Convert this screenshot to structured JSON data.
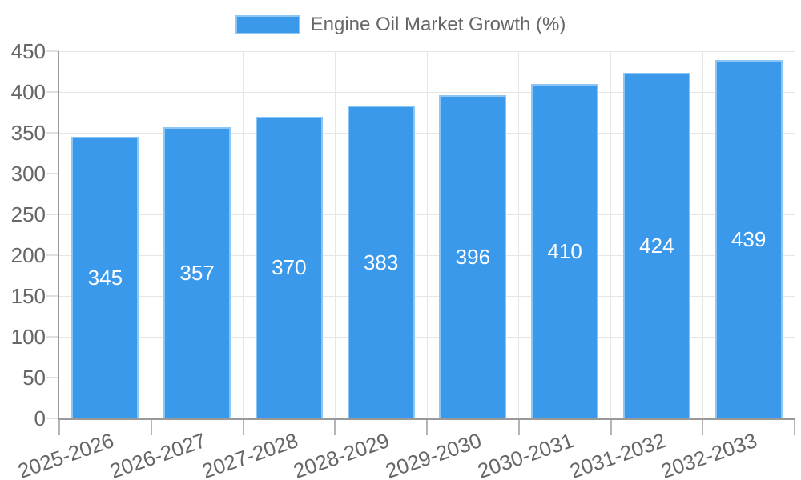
{
  "legend": {
    "label": "Engine Oil Market Growth (%)"
  },
  "colors": {
    "bar": "#3b99ec",
    "bar_border": "#8cc6f3",
    "axis": "#999999",
    "grid": "#e6e6e6",
    "tick_y": "#e0e0e0",
    "tick_x": "#b5b5b5",
    "text": "#666666",
    "value_text": "#ffffff",
    "background": "#ffffff"
  },
  "chart_data": {
    "type": "bar",
    "title": "Engine Oil Market Growth (%)",
    "categories": [
      "2025-2026",
      "2026-2027",
      "2027-2028",
      "2028-2029",
      "2029-2030",
      "2030-2031",
      "2031-2032",
      "2032-2033"
    ],
    "values": [
      345,
      357,
      370,
      383,
      396,
      410,
      424,
      439
    ],
    "xlabel": "",
    "ylabel": "",
    "ylim": [
      0,
      450
    ],
    "ytick_step": 50,
    "ytick_labels": [
      "0",
      "50",
      "100",
      "150",
      "200",
      "250",
      "300",
      "350",
      "400",
      "450"
    ],
    "grid": true,
    "legend_position": "top-center",
    "value_labels": "inside-center",
    "x_tick_rotation_deg": -19
  }
}
